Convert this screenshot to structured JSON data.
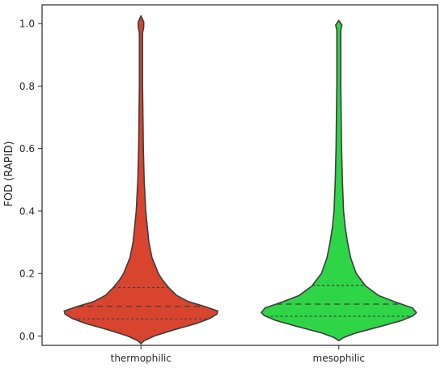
{
  "chart_data": {
    "type": "violin",
    "title": "",
    "xlabel": "",
    "ylabel": "FOD (RAPID)",
    "ylim": [
      -0.03,
      1.06
    ],
    "grid": false,
    "yticks": [
      0.0,
      0.2,
      0.4,
      0.6,
      0.8,
      1.0
    ],
    "ytick_labels": [
      "0.0",
      "0.2",
      "0.4",
      "0.6",
      "0.8",
      "1.0"
    ],
    "categories": [
      "thermophilic",
      "mesophilic"
    ],
    "colors": {
      "thermophilic": "#d9442f",
      "mesophilic": "#2ed546"
    },
    "violins": [
      {
        "category": "thermophilic",
        "min": -0.025,
        "max": 1.025,
        "q1": 0.055,
        "median": 0.095,
        "q3": 0.155,
        "profile": [
          [
            -0.025,
            0.0
          ],
          [
            -0.015,
            0.04
          ],
          [
            0.0,
            0.17
          ],
          [
            0.02,
            0.42
          ],
          [
            0.04,
            0.7
          ],
          [
            0.055,
            0.86
          ],
          [
            0.07,
            0.96
          ],
          [
            0.08,
            0.97
          ],
          [
            0.095,
            0.8
          ],
          [
            0.11,
            0.6
          ],
          [
            0.13,
            0.45
          ],
          [
            0.155,
            0.35
          ],
          [
            0.18,
            0.27
          ],
          [
            0.2,
            0.22
          ],
          [
            0.25,
            0.14
          ],
          [
            0.3,
            0.1
          ],
          [
            0.35,
            0.08
          ],
          [
            0.4,
            0.06
          ],
          [
            0.5,
            0.04
          ],
          [
            0.6,
            0.03
          ],
          [
            0.7,
            0.025
          ],
          [
            0.8,
            0.02
          ],
          [
            0.9,
            0.02
          ],
          [
            0.97,
            0.02
          ],
          [
            0.99,
            0.035
          ],
          [
            1.005,
            0.035
          ],
          [
            1.025,
            0.0
          ]
        ]
      },
      {
        "category": "mesophilic",
        "min": -0.015,
        "max": 1.01,
        "q1": 0.063,
        "median": 0.102,
        "q3": 0.162,
        "profile": [
          [
            -0.015,
            0.0
          ],
          [
            -0.005,
            0.06
          ],
          [
            0.01,
            0.22
          ],
          [
            0.03,
            0.52
          ],
          [
            0.05,
            0.8
          ],
          [
            0.065,
            0.94
          ],
          [
            0.075,
            0.98
          ],
          [
            0.09,
            0.93
          ],
          [
            0.11,
            0.7
          ],
          [
            0.13,
            0.5
          ],
          [
            0.16,
            0.34
          ],
          [
            0.18,
            0.28
          ],
          [
            0.2,
            0.22
          ],
          [
            0.25,
            0.15
          ],
          [
            0.3,
            0.11
          ],
          [
            0.35,
            0.08
          ],
          [
            0.4,
            0.06
          ],
          [
            0.5,
            0.045
          ],
          [
            0.6,
            0.035
          ],
          [
            0.7,
            0.03
          ],
          [
            0.8,
            0.025
          ],
          [
            0.9,
            0.025
          ],
          [
            0.98,
            0.025
          ],
          [
            0.995,
            0.04
          ],
          [
            1.01,
            0.0
          ]
        ]
      }
    ]
  }
}
